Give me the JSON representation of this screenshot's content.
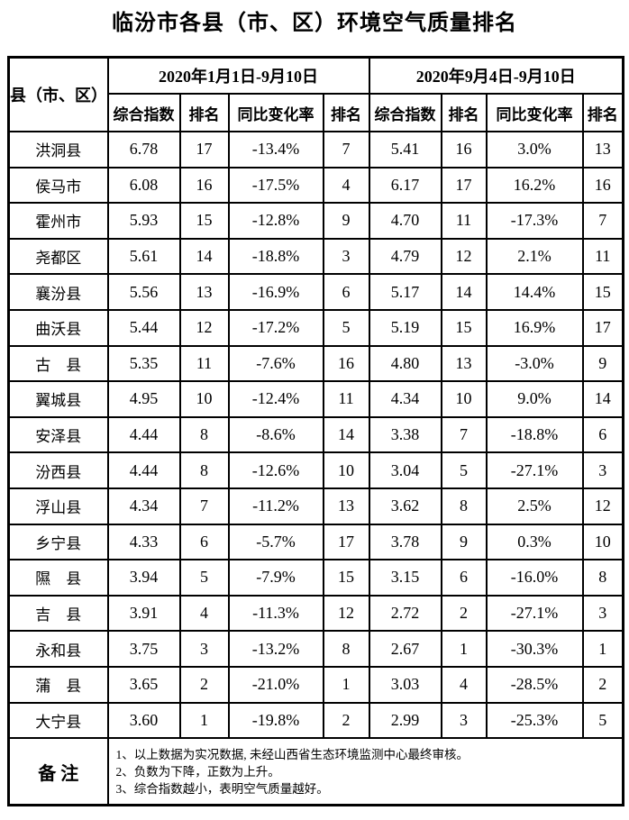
{
  "title": "临汾市各县（市、区）环境空气质量排名",
  "table": {
    "county_header": "县（市、区）",
    "period1_header": "2020年1月1日-9月10日",
    "period2_header": "2020年9月4日-9月10日",
    "sub_headers": [
      "综合指数",
      "排名",
      "同比变化率",
      "排名",
      "综合指数",
      "排名",
      "同比变化率",
      "排名"
    ],
    "rows": [
      [
        "洪洞县",
        "6.78",
        "17",
        "-13.4%",
        "7",
        "5.41",
        "16",
        "3.0%",
        "13"
      ],
      [
        "侯马市",
        "6.08",
        "16",
        "-17.5%",
        "4",
        "6.17",
        "17",
        "16.2%",
        "16"
      ],
      [
        "霍州市",
        "5.93",
        "15",
        "-12.8%",
        "9",
        "4.70",
        "11",
        "-17.3%",
        "7"
      ],
      [
        "尧都区",
        "5.61",
        "14",
        "-18.8%",
        "3",
        "4.79",
        "12",
        "2.1%",
        "11"
      ],
      [
        "襄汾县",
        "5.56",
        "13",
        "-16.9%",
        "6",
        "5.17",
        "14",
        "14.4%",
        "15"
      ],
      [
        "曲沃县",
        "5.44",
        "12",
        "-17.2%",
        "5",
        "5.19",
        "15",
        "16.9%",
        "17"
      ],
      [
        "古　县",
        "5.35",
        "11",
        "-7.6%",
        "16",
        "4.80",
        "13",
        "-3.0%",
        "9"
      ],
      [
        "翼城县",
        "4.95",
        "10",
        "-12.4%",
        "11",
        "4.34",
        "10",
        "9.0%",
        "14"
      ],
      [
        "安泽县",
        "4.44",
        "8",
        "-8.6%",
        "14",
        "3.38",
        "7",
        "-18.8%",
        "6"
      ],
      [
        "汾西县",
        "4.44",
        "8",
        "-12.6%",
        "10",
        "3.04",
        "5",
        "-27.1%",
        "3"
      ],
      [
        "浮山县",
        "4.34",
        "7",
        "-11.2%",
        "13",
        "3.62",
        "8",
        "2.5%",
        "12"
      ],
      [
        "乡宁县",
        "4.33",
        "6",
        "-5.7%",
        "17",
        "3.78",
        "9",
        "0.3%",
        "10"
      ],
      [
        "隰　县",
        "3.94",
        "5",
        "-7.9%",
        "15",
        "3.15",
        "6",
        "-16.0%",
        "8"
      ],
      [
        "吉　县",
        "3.91",
        "4",
        "-11.3%",
        "12",
        "2.72",
        "2",
        "-27.1%",
        "3"
      ],
      [
        "永和县",
        "3.75",
        "3",
        "-13.2%",
        "8",
        "2.67",
        "1",
        "-30.3%",
        "1"
      ],
      [
        "蒲　县",
        "3.65",
        "2",
        "-21.0%",
        "1",
        "3.03",
        "4",
        "-28.5%",
        "2"
      ],
      [
        "大宁县",
        "3.60",
        "1",
        "-19.8%",
        "2",
        "2.99",
        "3",
        "-25.3%",
        "5"
      ]
    ]
  },
  "notes": {
    "label": "备 注",
    "lines": [
      "1、以上数据为实况数据, 未经山西省生态环境监测中心最终审核。",
      "2、负数为下降，正数为上升。",
      "3、综合指数越小，表明空气质量越好。"
    ]
  }
}
